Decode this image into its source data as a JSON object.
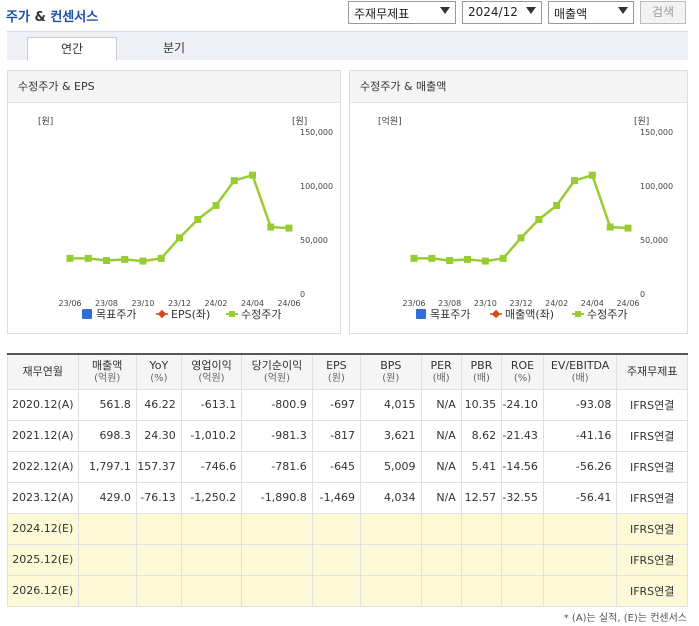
{
  "header": {
    "title_part1": "주가",
    "title_amp": " & ",
    "title_part2": "컨센서스",
    "select_account": "주재무제표",
    "select_period": "2024/12",
    "select_metric": "매출액",
    "search_label": "검색"
  },
  "tabs": [
    {
      "label": "연간"
    },
    {
      "label": "분기"
    }
  ],
  "charts": {
    "left": {
      "title": "수정주가 & EPS",
      "y_unit_left": "[원]",
      "y_unit_right": "[원]",
      "legend": [
        "목표주가",
        "EPS(좌)",
        "수정주가"
      ]
    },
    "right": {
      "title": "수정주가 & 매출액",
      "y_unit_left": "[억원]",
      "y_unit_right": "[원]",
      "legend": [
        "목표주가",
        "매출액(좌)",
        "수정주가"
      ]
    }
  },
  "chart_data": [
    {
      "type": "line",
      "title": "수정주가 & EPS",
      "x": [
        "23/06",
        "23/07",
        "23/08",
        "23/09",
        "23/10",
        "23/11",
        "23/12",
        "24/01",
        "24/02",
        "24/03",
        "24/04",
        "24/05",
        "24/06"
      ],
      "x_tick_labels": [
        "23/06",
        "23/08",
        "23/10",
        "23/12",
        "24/02",
        "24/04",
        "24/06"
      ],
      "y_right_ticks": [
        "0",
        "50,000",
        "100,000",
        "150,000"
      ],
      "y_right_range": [
        0,
        150000
      ],
      "series": [
        {
          "name": "수정주가",
          "axis": "right",
          "color": "#99cc33",
          "values": [
            33000,
            33000,
            31000,
            32000,
            30500,
            33000,
            52000,
            69000,
            82000,
            105000,
            110000,
            62000,
            61000
          ]
        }
      ]
    },
    {
      "type": "line",
      "title": "수정주가 & 매출액",
      "x": [
        "23/06",
        "23/07",
        "23/08",
        "23/09",
        "23/10",
        "23/11",
        "23/12",
        "24/01",
        "24/02",
        "24/03",
        "24/04",
        "24/05",
        "24/06"
      ],
      "x_tick_labels": [
        "23/06",
        "23/08",
        "23/10",
        "23/12",
        "24/02",
        "24/04",
        "24/06"
      ],
      "y_right_ticks": [
        "0",
        "50,000",
        "100,000",
        "150,000"
      ],
      "y_right_range": [
        0,
        150000
      ],
      "series": [
        {
          "name": "수정주가",
          "axis": "right",
          "color": "#99cc33",
          "values": [
            33000,
            33000,
            31000,
            32000,
            30500,
            33000,
            52000,
            69000,
            82000,
            105000,
            110000,
            62000,
            61000
          ]
        }
      ]
    }
  ],
  "legend_colors": {
    "target": "#2e6fd6",
    "eps": "#d04a1c",
    "price": "#99cc33"
  },
  "table": {
    "headers": [
      {
        "main": "재무연월",
        "sub": ""
      },
      {
        "main": "매출액",
        "sub": "(억원)"
      },
      {
        "main": "YoY",
        "sub": "(%)"
      },
      {
        "main": "영업이익",
        "sub": "(억원)"
      },
      {
        "main": "당기순이익",
        "sub": "(억원)"
      },
      {
        "main": "EPS",
        "sub": "(원)"
      },
      {
        "main": "BPS",
        "sub": "(원)"
      },
      {
        "main": "PER",
        "sub": "(배)"
      },
      {
        "main": "PBR",
        "sub": "(배)"
      },
      {
        "main": "ROE",
        "sub": "(%)"
      },
      {
        "main": "EV/EBITDA",
        "sub": "(배)"
      },
      {
        "main": "주재무제표",
        "sub": ""
      }
    ],
    "rows": [
      [
        "2020.12(A)",
        "561.8",
        "46.22",
        "-613.1",
        "-800.9",
        "-697",
        "4,015",
        "N/A",
        "10.35",
        "-24.10",
        "-93.08",
        "IFRS연결"
      ],
      [
        "2021.12(A)",
        "698.3",
        "24.30",
        "-1,010.2",
        "-981.3",
        "-817",
        "3,621",
        "N/A",
        "8.62",
        "-21.43",
        "-41.16",
        "IFRS연결"
      ],
      [
        "2022.12(A)",
        "1,797.1",
        "157.37",
        "-746.6",
        "-781.6",
        "-645",
        "5,009",
        "N/A",
        "5.41",
        "-14.56",
        "-56.26",
        "IFRS연결"
      ],
      [
        "2023.12(A)",
        "429.0",
        "-76.13",
        "-1,250.2",
        "-1,890.8",
        "-1,469",
        "4,034",
        "N/A",
        "12.57",
        "-32.55",
        "-56.41",
        "IFRS연결"
      ],
      [
        "2024.12(E)",
        "",
        "",
        "",
        "",
        "",
        "",
        "",
        "",
        "",
        "",
        "IFRS연결"
      ],
      [
        "2025.12(E)",
        "",
        "",
        "",
        "",
        "",
        "",
        "",
        "",
        "",
        "",
        "IFRS연결"
      ],
      [
        "2026.12(E)",
        "",
        "",
        "",
        "",
        "",
        "",
        "",
        "",
        "",
        "",
        "IFRS연결"
      ]
    ]
  },
  "footnote": "* (A)는 실적, (E)는 컨센서스"
}
